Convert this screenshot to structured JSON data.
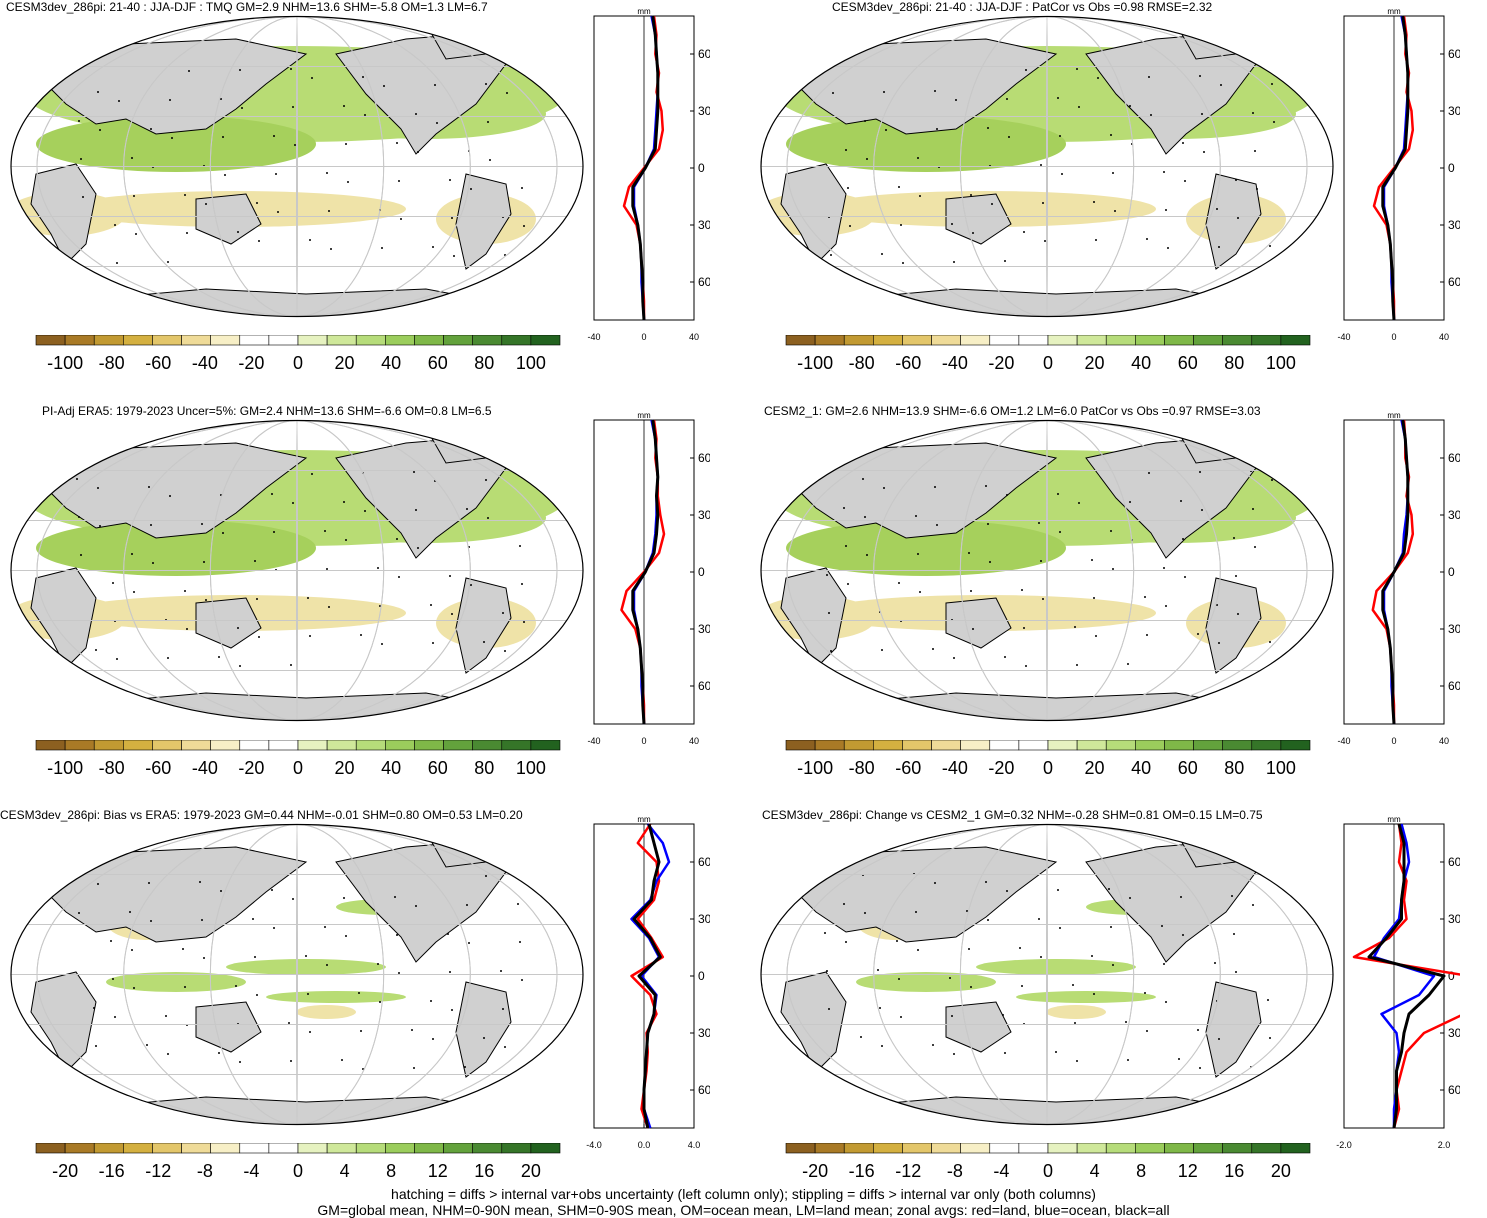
{
  "panels": [
    {
      "title": "CESM3dev_286pi: 21-40 : JJA-DJF : TMQ GM=2.9 NHM=13.6 SHM=-5.8 OM=1.3 LM=6.7",
      "scale": "full",
      "zonal_xticks": [
        "-40",
        "0",
        "40"
      ],
      "zonal_xlim": [
        -40,
        40
      ],
      "zonal_units": "mm",
      "lat_labels": [
        "60N",
        "30N",
        "0",
        "30S",
        "60S"
      ],
      "colorbar_labels": [
        "-100",
        "-80",
        "-60",
        "-40",
        "-20",
        "0",
        "20",
        "40",
        "60",
        "80",
        "100"
      ]
    },
    {
      "title": "CESM3dev_286pi: 21-40 : JJA-DJF : PatCor vs Obs =0.98 RMSE=2.32",
      "scale": "full",
      "zonal_xticks": [
        "-40",
        "0",
        "40"
      ],
      "zonal_xlim": [
        -40,
        40
      ],
      "zonal_units": "mm",
      "lat_labels": [
        "60N",
        "30N",
        "0",
        "30S",
        "60S"
      ],
      "colorbar_labels": [
        "-100",
        "-80",
        "-60",
        "-40",
        "-20",
        "0",
        "20",
        "40",
        "60",
        "80",
        "100"
      ]
    },
    {
      "title": "PI-Adj ERA5: 1979-2023 Uncer=5%: GM=2.4 NHM=13.6 SHM=-6.6 OM=0.8 LM=6.5",
      "scale": "full",
      "zonal_xticks": [
        "-40",
        "0",
        "40"
      ],
      "zonal_xlim": [
        -40,
        40
      ],
      "zonal_units": "mm",
      "lat_labels": [
        "60N",
        "30N",
        "0",
        "30S",
        "60S"
      ],
      "colorbar_labels": [
        "-100",
        "-80",
        "-60",
        "-40",
        "-20",
        "0",
        "20",
        "40",
        "60",
        "80",
        "100"
      ]
    },
    {
      "title": "CESM2_1: GM=2.6 NHM=13.9 SHM=-6.6 OM=1.2 LM=6.0 PatCor vs Obs =0.97 RMSE=3.03",
      "scale": "full",
      "zonal_xticks": [
        "-40",
        "0",
        "40"
      ],
      "zonal_xlim": [
        -40,
        40
      ],
      "zonal_units": "mm",
      "lat_labels": [
        "60N",
        "30N",
        "0",
        "30S",
        "60S"
      ],
      "colorbar_labels": [
        "-100",
        "-80",
        "-60",
        "-40",
        "-20",
        "0",
        "20",
        "40",
        "60",
        "80",
        "100"
      ]
    },
    {
      "title": "CESM3dev_286pi: Bias vs ERA5: 1979-2023 GM=0.44 NHM=-0.01 SHM=0.80 OM=0.53 LM=0.20",
      "scale": "diff",
      "zonal_xticks": [
        "-4.0",
        "0.0",
        "4.0"
      ],
      "zonal_xlim": [
        -4,
        4
      ],
      "zonal_units": "mm",
      "lat_labels": [
        "60N",
        "30N",
        "0",
        "30S",
        "60S"
      ],
      "colorbar_labels": [
        "-20",
        "-16",
        "-12",
        "-8",
        "-4",
        "0",
        "4",
        "8",
        "12",
        "16",
        "20"
      ]
    },
    {
      "title": "CESM3dev_286pi: Change vs CESM2_1 GM=0.32 NHM=-0.28 SHM=0.81 OM=0.15 LM=0.75",
      "scale": "diff",
      "zonal_xticks": [
        "-2.0",
        "2.0"
      ],
      "zonal_xlim": [
        -2,
        2
      ],
      "zonal_units": "mm",
      "lat_labels": [
        "60N",
        "30N",
        "0",
        "30S",
        "60S"
      ],
      "colorbar_labels": [
        "-20",
        "-16",
        "-12",
        "-8",
        "-4",
        "0",
        "4",
        "8",
        "12",
        "16",
        "20"
      ]
    }
  ],
  "colors": {
    "palette": [
      "#8c6020",
      "#a97a26",
      "#c29a32",
      "#d4b040",
      "#e3c66a",
      "#efdb98",
      "#f7efc6",
      "#ffffff",
      "#ffffff",
      "#e6f2c0",
      "#cfe89a",
      "#b6dc7a",
      "#9bcd5c",
      "#7fb848",
      "#63a23c",
      "#4a8a32",
      "#357528",
      "#22621f"
    ],
    "land": "#d0d0d0",
    "wet": "#b8dc74",
    "dry": "#efe3a8",
    "zonal_land": "#ff0000",
    "zonal_ocean": "#0000ff",
    "zonal_all": "#000000"
  },
  "chart_data": [
    {
      "type": "zonal-profile",
      "panel": "CESM3dev_286pi: 21-40 : JJA-DJF : TMQ",
      "lat": [
        80,
        70,
        60,
        50,
        40,
        30,
        20,
        10,
        0,
        -10,
        -20,
        -30,
        -40,
        -50,
        -60,
        -70,
        -80
      ],
      "series": [
        {
          "name": "land",
          "values": [
            8,
            10,
            9,
            12,
            10,
            14,
            15,
            12,
            0,
            -12,
            -16,
            -6,
            -3,
            -2,
            -1,
            0,
            0
          ]
        },
        {
          "name": "ocean",
          "values": [
            6,
            9,
            10,
            11,
            11,
            10,
            9,
            8,
            1,
            -8,
            -8,
            -5,
            -3,
            -2,
            -2,
            -1,
            0
          ]
        },
        {
          "name": "all",
          "values": [
            7,
            9,
            10,
            11,
            11,
            11,
            10,
            9,
            1,
            -9,
            -9,
            -5,
            -3,
            -2,
            -1,
            -1,
            0
          ]
        }
      ]
    },
    {
      "type": "zonal-profile",
      "panel": "CESM3dev_286pi: 21-40 : JJA-DJF : PatCor vs Obs",
      "lat": [
        80,
        70,
        60,
        50,
        40,
        30,
        20,
        10,
        0,
        -10,
        -20,
        -30,
        -40,
        -50,
        -60,
        -70,
        -80
      ],
      "series": [
        {
          "name": "land",
          "values": [
            8,
            10,
            9,
            12,
            10,
            14,
            15,
            12,
            0,
            -12,
            -16,
            -6,
            -3,
            -2,
            -1,
            0,
            0
          ]
        },
        {
          "name": "ocean",
          "values": [
            6,
            9,
            10,
            11,
            11,
            10,
            9,
            8,
            1,
            -8,
            -8,
            -5,
            -3,
            -2,
            -2,
            -1,
            0
          ]
        },
        {
          "name": "all",
          "values": [
            7,
            9,
            10,
            11,
            11,
            11,
            10,
            9,
            1,
            -9,
            -9,
            -5,
            -3,
            -2,
            -1,
            -1,
            0
          ]
        }
      ]
    },
    {
      "type": "zonal-profile",
      "panel": "PI-Adj ERA5: 1979-2023",
      "lat": [
        80,
        70,
        60,
        50,
        40,
        30,
        20,
        10,
        0,
        -10,
        -20,
        -30,
        -40,
        -50,
        -60,
        -70,
        -80
      ],
      "series": [
        {
          "name": "land",
          "values": [
            8,
            10,
            9,
            11,
            11,
            13,
            16,
            12,
            0,
            -14,
            -18,
            -7,
            -3,
            -2,
            -1,
            0,
            0
          ]
        },
        {
          "name": "ocean",
          "values": [
            6,
            9,
            10,
            11,
            10,
            10,
            9,
            7,
            1,
            -8,
            -8,
            -5,
            -3,
            -2,
            -2,
            -1,
            0
          ]
        },
        {
          "name": "all",
          "values": [
            7,
            9,
            10,
            11,
            10,
            11,
            10,
            8,
            1,
            -9,
            -9,
            -5,
            -3,
            -2,
            -1,
            -1,
            0
          ]
        }
      ]
    },
    {
      "type": "zonal-profile",
      "panel": "CESM2_1",
      "lat": [
        80,
        70,
        60,
        50,
        40,
        30,
        20,
        10,
        0,
        -10,
        -20,
        -30,
        -40,
        -50,
        -60,
        -70,
        -80
      ],
      "series": [
        {
          "name": "land",
          "values": [
            8,
            9,
            9,
            12,
            10,
            14,
            15,
            11,
            0,
            -14,
            -17,
            -6,
            -3,
            -2,
            -1,
            0,
            0
          ]
        },
        {
          "name": "ocean",
          "values": [
            6,
            9,
            10,
            11,
            11,
            10,
            8,
            7,
            0,
            -8,
            -8,
            -5,
            -3,
            -2,
            -2,
            -1,
            0
          ]
        },
        {
          "name": "all",
          "values": [
            7,
            9,
            10,
            11,
            11,
            11,
            10,
            8,
            0,
            -9,
            -9,
            -5,
            -3,
            -2,
            -1,
            -1,
            0
          ]
        }
      ]
    },
    {
      "type": "zonal-profile",
      "panel": "CESM3dev_286pi: Bias vs ERA5",
      "lat": [
        80,
        70,
        60,
        50,
        40,
        30,
        20,
        10,
        0,
        -10,
        -20,
        -30,
        -40,
        -50,
        -60,
        -70,
        -80
      ],
      "series": [
        {
          "name": "land",
          "values": [
            0.5,
            -0.5,
            1.0,
            1.2,
            0.8,
            -0.5,
            0.6,
            1.5,
            -1.0,
            0.5,
            1.0,
            0.2,
            0.3,
            0.2,
            0.0,
            -0.2,
            0.3
          ]
        },
        {
          "name": "ocean",
          "values": [
            0.3,
            1.5,
            2.0,
            1.0,
            0.5,
            -1.0,
            0.4,
            1.2,
            -0.2,
            1.0,
            0.8,
            0.3,
            0.2,
            0.1,
            0.0,
            0.0,
            0.5
          ]
        },
        {
          "name": "all",
          "values": [
            0.4,
            0.8,
            1.2,
            0.8,
            0.6,
            -0.8,
            0.5,
            1.3,
            -0.4,
            0.9,
            0.8,
            0.3,
            0.2,
            0.1,
            0.0,
            0.0,
            0.3
          ]
        }
      ]
    },
    {
      "type": "zonal-profile",
      "panel": "CESM3dev_286pi: Change vs CESM2_1",
      "lat": [
        80,
        70,
        60,
        50,
        40,
        30,
        20,
        10,
        0,
        -10,
        -20,
        -30,
        -40,
        -50,
        -60,
        -70,
        -80
      ],
      "series": [
        {
          "name": "land",
          "values": [
            0.2,
            0.3,
            0.2,
            0.5,
            0.4,
            0.5,
            -0.2,
            -1.6,
            3.0,
            3.2,
            2.8,
            1.2,
            0.5,
            0.3,
            0.1,
            0.2,
            0.0
          ]
        },
        {
          "name": "ocean",
          "values": [
            0.3,
            0.5,
            0.6,
            0.4,
            0.3,
            0.2,
            -0.4,
            -0.8,
            1.6,
            1.0,
            -0.5,
            0.1,
            0.2,
            0.1,
            0.1,
            0.0,
            0.0
          ]
        },
        {
          "name": "all",
          "values": [
            0.2,
            0.4,
            0.4,
            0.4,
            0.3,
            0.3,
            -0.3,
            -1.0,
            2.0,
            1.4,
            0.6,
            0.4,
            0.3,
            0.1,
            0.1,
            0.1,
            0.0
          ]
        }
      ]
    }
  ],
  "footer": {
    "line1": "hatching = diffs > internal var+obs uncertainty (left column only); stippling = diffs > internal var only (both columns)",
    "line2": "GM=global mean, NHM=0-90N mean, SHM=0-90S mean, OM=ocean mean, LM=land mean; zonal avgs: red=land, blue=ocean, black=all"
  }
}
